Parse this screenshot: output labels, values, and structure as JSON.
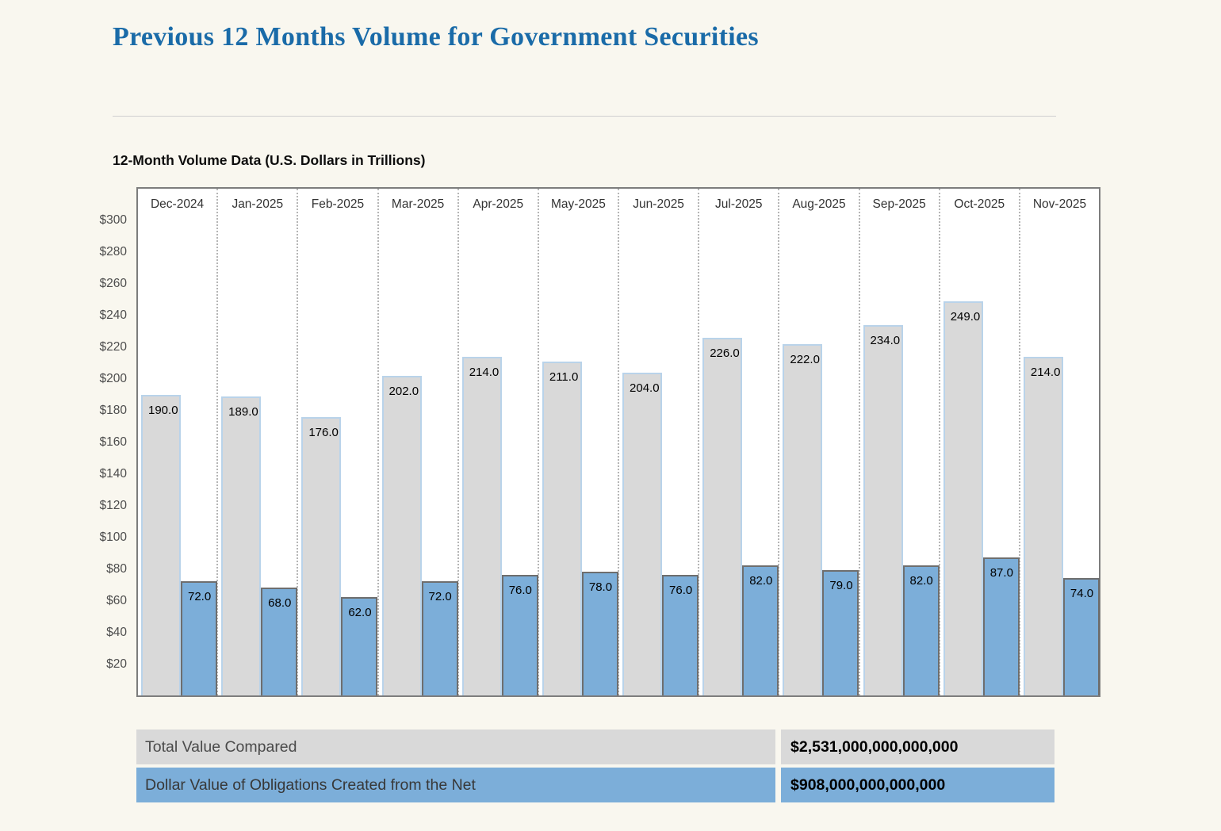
{
  "page": {
    "background": "#f9f7ef"
  },
  "header": {
    "title": "Previous 12 Months Volume for Government Securities",
    "title_color": "#1a6ba8"
  },
  "chart": {
    "heading": "12-Month Volume Data (U.S. Dollars in Trillions)"
  },
  "chart_data": {
    "type": "bar",
    "title": "12-Month Volume Data (U.S. Dollars in Trillions)",
    "unit": "U.S. Dollars in Trillions",
    "categories": [
      "Dec-2024",
      "Jan-2025",
      "Feb-2025",
      "Mar-2025",
      "Apr-2025",
      "May-2025",
      "Jun-2025",
      "Jul-2025",
      "Aug-2025",
      "Sep-2025",
      "Oct-2025",
      "Nov-2025"
    ],
    "series": [
      {
        "name": "Total Value Compared",
        "values": [
          190,
          189,
          176,
          202,
          214,
          211,
          204,
          226,
          222,
          234,
          249,
          214
        ],
        "value_labels": [
          "190.0",
          "189.0",
          "176.0",
          "202.0",
          "214.0",
          "211.0",
          "204.0",
          "226.0",
          "222.0",
          "234.0",
          "249.0",
          "214.0"
        ],
        "fill": "#d9d9d9",
        "border": "#b9d3ea"
      },
      {
        "name": "Dollar Value of Obligations Created from the Net",
        "values": [
          72,
          68,
          62,
          72,
          76,
          78,
          76,
          82,
          79,
          82,
          87,
          74
        ],
        "value_labels": [
          "72.0",
          "68.0",
          "62.0",
          "72.0",
          "76.0",
          "78.0",
          "76.0",
          "82.0",
          "79.0",
          "82.0",
          "87.0",
          "74.0"
        ],
        "fill": "#7caed9",
        "border": "#6e6e6e"
      }
    ],
    "xlabel": "",
    "ylabel": "",
    "ylim": [
      0,
      320
    ],
    "yticks": [
      20,
      40,
      60,
      80,
      100,
      120,
      140,
      160,
      180,
      200,
      220,
      240,
      260,
      280,
      300
    ],
    "ytick_prefix": "$",
    "grid": "vertical-dotted-between-categories",
    "legend_position": "none",
    "bar_labels_position": "inside-top"
  },
  "summary_table": {
    "rows": [
      {
        "label": "Total Value Compared",
        "value": "$2,531,000,000,000,000",
        "bg": "#d9d9d9",
        "label_color": "#4a4a4a"
      },
      {
        "label": "Dollar Value of Obligations Created from the Net",
        "value": "$908,000,000,000,000",
        "bg": "#7caed9",
        "label_color": "#383838"
      }
    ]
  }
}
